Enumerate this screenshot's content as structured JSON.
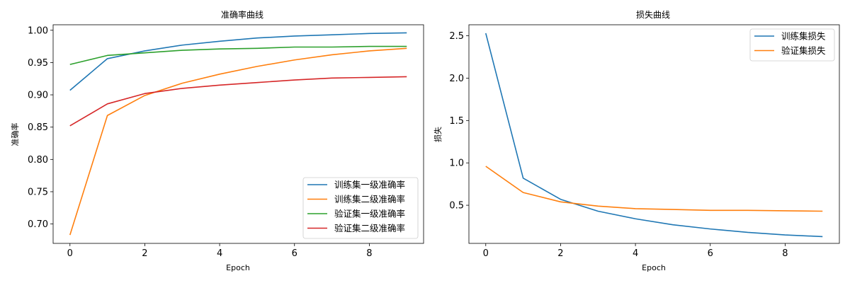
{
  "chart_data": [
    {
      "type": "line",
      "title": "准确率曲线",
      "xlabel": "Epoch",
      "ylabel": "准确率",
      "x": [
        0,
        1,
        2,
        3,
        4,
        5,
        6,
        7,
        8,
        9
      ],
      "xlim": [
        -0.45,
        9.45
      ],
      "ylim": [
        0.67,
        1.0085
      ],
      "xticks": [
        0,
        2,
        4,
        6,
        8
      ],
      "xtick_labels": [
        "0",
        "2",
        "4",
        "6",
        "8"
      ],
      "yticks": [
        0.7,
        0.75,
        0.8,
        0.85,
        0.9,
        0.95,
        1.0
      ],
      "ytick_labels": [
        "0.70",
        "0.75",
        "0.80",
        "0.85",
        "0.90",
        "0.95",
        "1.00"
      ],
      "grid": false,
      "legend_position": "lower-right",
      "series": [
        {
          "name": "训练集一级准确率",
          "color": "#1f77b4",
          "values": [
            0.907,
            0.956,
            0.968,
            0.977,
            0.983,
            0.988,
            0.991,
            0.993,
            0.995,
            0.996
          ]
        },
        {
          "name": "训练集二级准确率",
          "color": "#ff7f0e",
          "values": [
            0.683,
            0.868,
            0.899,
            0.918,
            0.932,
            0.944,
            0.954,
            0.962,
            0.968,
            0.972
          ]
        },
        {
          "name": "验证集一级准确率",
          "color": "#2ca02c",
          "values": [
            0.947,
            0.961,
            0.965,
            0.969,
            0.971,
            0.972,
            0.974,
            0.974,
            0.975,
            0.975
          ]
        },
        {
          "name": "验证集二级准确率",
          "color": "#d62728",
          "values": [
            0.852,
            0.886,
            0.902,
            0.91,
            0.915,
            0.919,
            0.923,
            0.926,
            0.927,
            0.928
          ]
        }
      ]
    },
    {
      "type": "line",
      "title": "损失曲线",
      "xlabel": "Epoch",
      "ylabel": "损失",
      "x": [
        0,
        1,
        2,
        3,
        4,
        5,
        6,
        7,
        8,
        9
      ],
      "xlim": [
        -0.45,
        9.45
      ],
      "ylim": [
        0.05,
        2.63
      ],
      "xticks": [
        0,
        2,
        4,
        6,
        8
      ],
      "xtick_labels": [
        "0",
        "2",
        "4",
        "6",
        "8"
      ],
      "yticks": [
        0.5,
        1.0,
        1.5,
        2.0,
        2.5
      ],
      "ytick_labels": [
        "0.5",
        "1.0",
        "1.5",
        "2.0",
        "2.5"
      ],
      "grid": false,
      "legend_position": "upper-right",
      "series": [
        {
          "name": "训练集损失",
          "color": "#1f77b4",
          "values": [
            2.53,
            0.82,
            0.57,
            0.43,
            0.34,
            0.27,
            0.22,
            0.18,
            0.15,
            0.13
          ]
        },
        {
          "name": "验证集损失",
          "color": "#ff7f0e",
          "values": [
            0.96,
            0.65,
            0.54,
            0.49,
            0.46,
            0.45,
            0.44,
            0.44,
            0.435,
            0.43
          ]
        }
      ]
    }
  ]
}
